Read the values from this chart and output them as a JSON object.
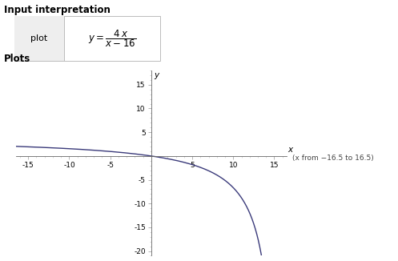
{
  "title_top": "Input interpretation",
  "plot_label": "plot",
  "plots_label": "Plots",
  "x_range": [
    -16.5,
    16.5
  ],
  "y_range": [
    -21,
    18
  ],
  "x_ticks": [
    -15,
    -10,
    -5,
    5,
    10,
    15
  ],
  "y_ticks": [
    -20,
    -15,
    -10,
    -5,
    5,
    10,
    15
  ],
  "x_label": "x",
  "y_label": "y",
  "annotation": "(x from −16.5 to 16.5)",
  "line_color": "#3a3a7a",
  "background_color": "#ffffff",
  "box_fill": "#eeeeee",
  "figsize": [
    4.97,
    3.26
  ],
  "dpi": 100,
  "font_family": "DejaVu Sans"
}
